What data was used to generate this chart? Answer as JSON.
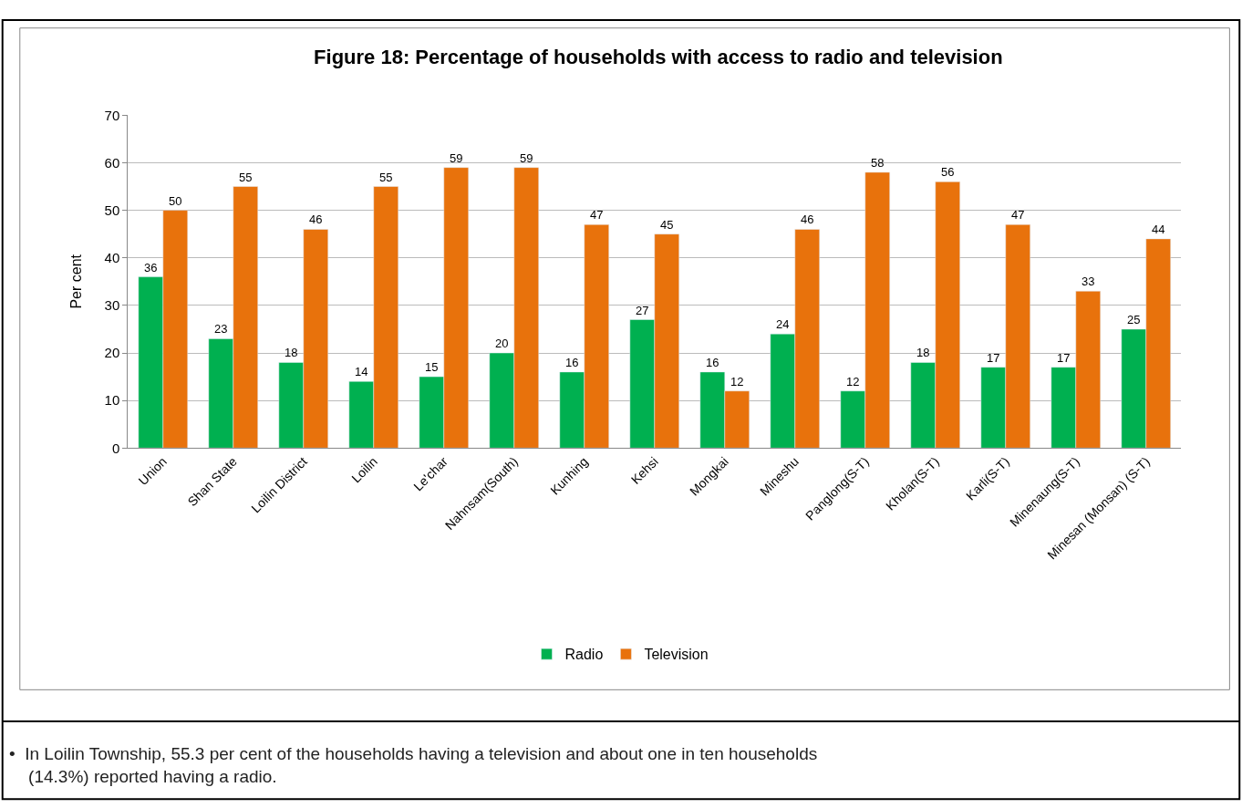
{
  "chart_data": {
    "type": "bar",
    "title": "Figure 18: Percentage of households with access to radio and television",
    "ylabel": "Per cent",
    "categories": [
      "Union",
      "Shan State",
      "Loilin District",
      "Loilin",
      "Le'char",
      "Nahnsam(South)",
      "Kunhing",
      "Kehsi",
      "Mongkai",
      "Mineshu",
      "Panglong(S-T)",
      "Kholan(S-T)",
      "Karli(S-T)",
      "Minenaung(S-T)",
      "Minesan (Monsan) (S-T)"
    ],
    "series": [
      {
        "name": "Radio",
        "color": "#00b050",
        "values": [
          36,
          23,
          18,
          14,
          15,
          20,
          16,
          27,
          16,
          24,
          12,
          18,
          17,
          17,
          25
        ]
      },
      {
        "name": "Television",
        "color": "#e8720c",
        "values": [
          50,
          55,
          46,
          55,
          59,
          59,
          47,
          45,
          12,
          46,
          58,
          56,
          47,
          33,
          44
        ]
      }
    ],
    "ylim": [
      0,
      70
    ],
    "yticks": [
      0,
      10,
      20,
      30,
      40,
      50,
      60,
      70
    ],
    "grid": "y",
    "legend": "bottom",
    "data_labels": true,
    "annotations": [
      "•  In Loilin Township, 55.3 per cent of the households having a television and about one in ten households\n    (14.3%) reported having a radio."
    ]
  }
}
